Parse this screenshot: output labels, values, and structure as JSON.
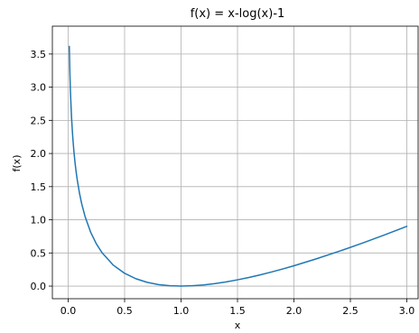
{
  "chart_data": {
    "type": "line",
    "title": "f(x) = x-log(x)-1",
    "xlabel": "x",
    "ylabel": "f(x)",
    "xlim": [
      -0.14,
      3.1
    ],
    "ylim": [
      -0.19,
      3.92
    ],
    "grid": true,
    "x_ticks": [
      0.0,
      0.5,
      1.0,
      1.5,
      2.0,
      2.5,
      3.0
    ],
    "x_tick_labels": [
      "0.0",
      "0.5",
      "1.0",
      "1.5",
      "2.0",
      "2.5",
      "3.0"
    ],
    "y_ticks": [
      0.0,
      0.5,
      1.0,
      1.5,
      2.0,
      2.5,
      3.0,
      3.5
    ],
    "y_tick_labels": [
      "0.0",
      "0.5",
      "1.0",
      "1.5",
      "2.0",
      "2.5",
      "3.0",
      "3.5"
    ],
    "series": [
      {
        "color": "#1f77b4",
        "x": [
          0.01,
          0.015,
          0.02,
          0.03,
          0.04,
          0.05,
          0.06,
          0.07,
          0.08,
          0.1,
          0.12,
          0.15,
          0.2,
          0.25,
          0.3,
          0.4,
          0.5,
          0.6,
          0.7,
          0.8,
          0.9,
          1.0,
          1.1,
          1.2,
          1.3,
          1.4,
          1.5,
          1.6,
          1.7,
          1.8,
          1.9,
          2.0,
          2.2,
          2.4,
          2.6,
          2.8,
          3.0
        ],
        "y": [
          3.615,
          3.215,
          2.932,
          2.537,
          2.259,
          2.046,
          1.873,
          1.729,
          1.606,
          1.403,
          1.24,
          1.047,
          0.809,
          0.636,
          0.504,
          0.316,
          0.193,
          0.111,
          0.057,
          0.023,
          0.005,
          0.0,
          0.005,
          0.018,
          0.038,
          0.064,
          0.095,
          0.13,
          0.169,
          0.212,
          0.258,
          0.307,
          0.412,
          0.525,
          0.644,
          0.77,
          0.901
        ]
      }
    ]
  }
}
